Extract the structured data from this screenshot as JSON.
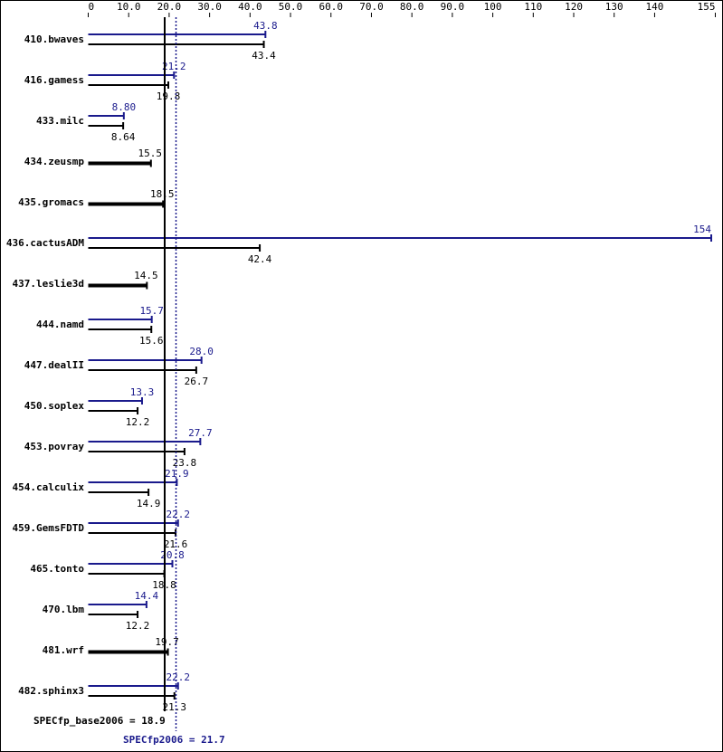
{
  "chart_data": {
    "type": "bar",
    "orientation": "horizontal",
    "x_ticks": [
      "0",
      "10.0",
      "20.0",
      "30.0",
      "40.0",
      "50.0",
      "60.0",
      "70.0",
      "80.0",
      "90.0",
      "100",
      "110",
      "120",
      "130",
      "140",
      "155"
    ],
    "xlim": [
      0,
      155
    ],
    "colors": {
      "base": "#000000",
      "peak": "#1a1a8c"
    },
    "categories": [
      "410.bwaves",
      "416.gamess",
      "433.milc",
      "434.zeusmp",
      "435.gromacs",
      "436.cactusADM",
      "437.leslie3d",
      "444.namd",
      "447.dealII",
      "450.soplex",
      "453.povray",
      "454.calculix",
      "459.GemsFDTD",
      "465.tonto",
      "470.lbm",
      "481.wrf",
      "482.sphinx3"
    ],
    "series": [
      {
        "key": "peak",
        "values": [
          43.8,
          21.2,
          8.8,
          15.5,
          18.5,
          154,
          14.5,
          15.7,
          28.0,
          13.3,
          27.7,
          21.9,
          22.2,
          20.8,
          14.4,
          19.7,
          22.2
        ],
        "labels": [
          "43.8",
          "21.2",
          "8.80",
          null,
          null,
          "154",
          null,
          "15.7",
          "28.0",
          "13.3",
          "27.7",
          "21.9",
          "22.2",
          "20.8",
          "14.4",
          null,
          "22.2"
        ]
      },
      {
        "key": "base",
        "values": [
          43.4,
          19.8,
          8.64,
          15.5,
          18.5,
          42.4,
          14.5,
          15.6,
          26.7,
          12.2,
          23.8,
          14.9,
          21.6,
          18.8,
          12.2,
          19.7,
          21.3
        ],
        "labels": [
          "43.4",
          "19.8",
          "8.64",
          "15.5",
          "18.5",
          "42.4",
          "14.5",
          "15.6",
          "26.7",
          "12.2",
          "23.8",
          "14.9",
          "21.6",
          "18.8",
          "12.2",
          "19.7",
          "21.3"
        ]
      }
    ],
    "summary": {
      "base_text": "SPECfp_base2006 = 18.9",
      "base_value": 18.9,
      "peak_text": "SPECfp2006 = 21.7",
      "peak_value": 21.7
    }
  }
}
